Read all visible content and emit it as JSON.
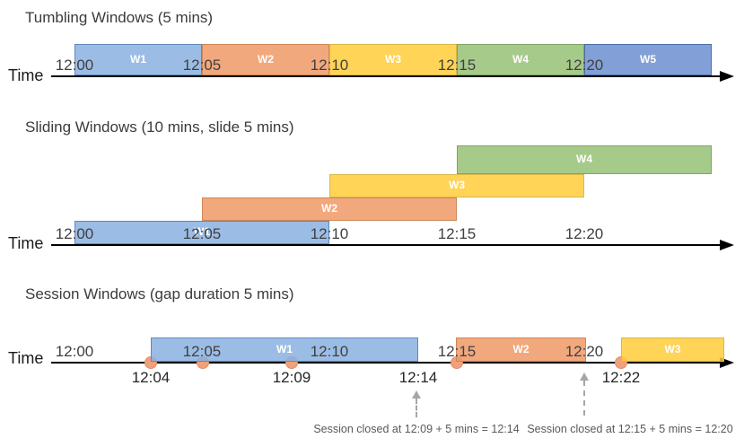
{
  "colors": {
    "blue": {
      "fill": "rgba(137,177,224,0.85)",
      "border": "#5E88BC"
    },
    "orange": {
      "fill": "rgba(240,153,102,0.85)",
      "border": "#CE8757"
    },
    "yellow": {
      "fill": "rgba(255,204,58,0.85)",
      "border": "#D9B84A"
    },
    "green": {
      "fill": "rgba(150,193,118,0.85)",
      "border": "#7FA465"
    },
    "blue2": {
      "fill": "rgba(108,143,208,0.85)",
      "border": "#4A6DA8"
    },
    "event": {
      "fill": "#F1A07C",
      "border": "#DE8E66"
    }
  },
  "sections": [
    {
      "id": "tumbling",
      "title": "Tumbling Windows (5 mins)",
      "axis_label": "Time",
      "ticks": [
        {
          "label": "12:00",
          "min": 0
        },
        {
          "label": "12:05",
          "min": 5
        },
        {
          "label": "12:10",
          "min": 10
        },
        {
          "label": "12:15",
          "min": 15
        },
        {
          "label": "12:20",
          "min": 20
        }
      ],
      "windows": [
        {
          "label": "W1",
          "start": "12:00",
          "end": "12:05",
          "start_min": 0,
          "end_min": 5,
          "color": "blue"
        },
        {
          "label": "W2",
          "start": "12:05",
          "end": "12:10",
          "start_min": 5,
          "end_min": 10,
          "color": "orange"
        },
        {
          "label": "W3",
          "start": "12:10",
          "end": "12:15",
          "start_min": 10,
          "end_min": 15,
          "color": "yellow"
        },
        {
          "label": "W4",
          "start": "12:15",
          "end": "12:20",
          "start_min": 15,
          "end_min": 20,
          "color": "green"
        },
        {
          "label": "W5",
          "start": "12:20",
          "end": "12:25",
          "start_min": 20,
          "end_min": 25,
          "color": "blue2"
        }
      ]
    },
    {
      "id": "sliding",
      "title": "Sliding Windows (10 mins, slide 5 mins)",
      "axis_label": "Time",
      "ticks": [
        {
          "label": "12:00",
          "min": 0
        },
        {
          "label": "12:05",
          "min": 5
        },
        {
          "label": "12:10",
          "min": 10
        },
        {
          "label": "12:15",
          "min": 15
        },
        {
          "label": "12:20",
          "min": 20
        }
      ],
      "windows": [
        {
          "label": "W1",
          "start": "12:00",
          "end": "12:10",
          "start_min": 0,
          "end_min": 10,
          "color": "blue"
        },
        {
          "label": "W2",
          "start": "12:05",
          "end": "12:15",
          "start_min": 5,
          "end_min": 15,
          "color": "orange"
        },
        {
          "label": "W3",
          "start": "12:10",
          "end": "12:20",
          "start_min": 10,
          "end_min": 20,
          "color": "yellow"
        },
        {
          "label": "W4",
          "start": "12:15",
          "end": "12:25",
          "start_min": 15,
          "end_min": 25,
          "color": "green"
        }
      ]
    },
    {
      "id": "session",
      "title": "Session Windows (gap duration 5 mins)",
      "axis_label": "Time",
      "ticks": [
        {
          "label": "12:00",
          "min": 0
        },
        {
          "label": "12:05",
          "min": 5
        },
        {
          "label": "12:10",
          "min": 10
        },
        {
          "label": "12:15",
          "min": 15
        },
        {
          "label": "12:20",
          "min": 20
        }
      ],
      "windows": [
        {
          "label": "W1",
          "start": "12:04",
          "end": "12:14",
          "color": "blue"
        },
        {
          "label": "W2",
          "start": "12:15",
          "end": "12:20",
          "color": "orange"
        },
        {
          "label": "W3",
          "start": "12:22",
          "end": "",
          "color": "yellow"
        }
      ],
      "events": [
        {
          "time": "12:04"
        },
        {
          "time": ""
        },
        {
          "time": "12:09"
        },
        {
          "time": "12:15"
        },
        {
          "time": "12:22"
        }
      ],
      "event_labels": [
        {
          "label": "12:04"
        },
        {
          "label": "12:09"
        },
        {
          "label": "12:14"
        },
        {
          "label": "12:22"
        }
      ],
      "annotations": [
        {
          "text": "Session closed at 12:09 + 5 mins = 12:14"
        },
        {
          "text": "Session closed at 12:15 + 5 mins = 12:20"
        }
      ]
    }
  ]
}
